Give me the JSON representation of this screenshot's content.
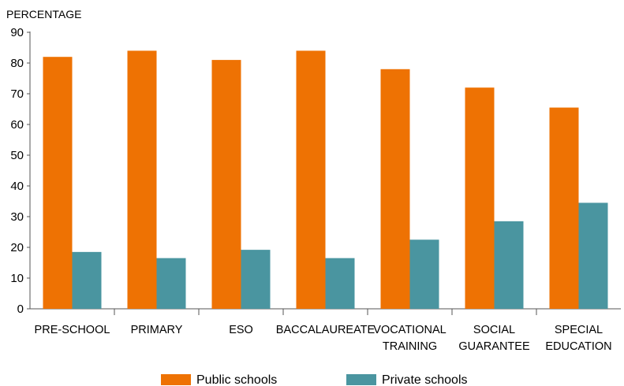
{
  "chart_data": {
    "type": "bar",
    "title": "",
    "ylabel": "PERCENTAGE",
    "xlabel": "",
    "ylim": [
      0,
      90
    ],
    "yticks": [
      0,
      10,
      20,
      30,
      40,
      50,
      60,
      70,
      80,
      90
    ],
    "grid": false,
    "legend_position": "bottom",
    "categories": [
      [
        "PRE-SCHOOL"
      ],
      [
        "PRIMARY"
      ],
      [
        "ESO"
      ],
      [
        "BACCALAUREATE"
      ],
      [
        "VOCATIONAL",
        "TRAINING"
      ],
      [
        "SOCIAL",
        "GUARANTEE"
      ],
      [
        "SPECIAL",
        "EDUCATION"
      ]
    ],
    "series": [
      {
        "name": "Public schools",
        "color": "#ee7203",
        "values": [
          82,
          84,
          81,
          84,
          78,
          72,
          65.5
        ]
      },
      {
        "name": "Private schools",
        "color": "#4a95a0",
        "values": [
          18.5,
          16.5,
          19.2,
          16.5,
          22.5,
          28.5,
          34.5
        ]
      }
    ]
  }
}
